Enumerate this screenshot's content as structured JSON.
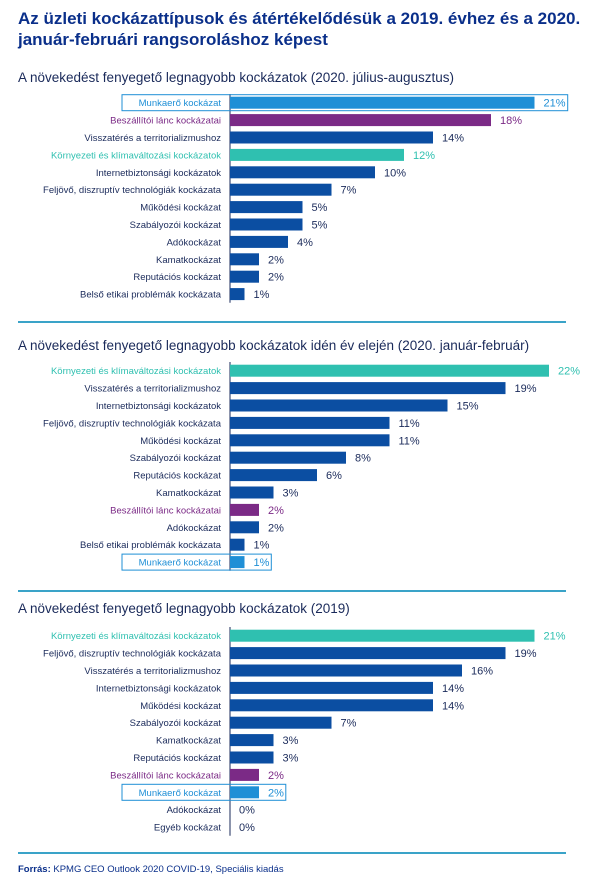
{
  "title": "Az üzleti kockázattípusok és átértékelődésük a 2019. évhez és a 2020. január-februári rangsoroláshoz képest",
  "source_label": "Forrás:",
  "source_text": "KPMG CEO Outlook 2020 COVID-19, Speciális kiadás",
  "colors": {
    "default": "#0b4ea2",
    "purple": "#7b2a86",
    "teal": "#2fc0b0",
    "lightblue": "#1f8fd6",
    "axis": "#1a2a5a",
    "title": "#0a2f8a",
    "rule": "#3aa3c8"
  },
  "chart_data": [
    {
      "type": "bar",
      "orientation": "horizontal",
      "title": "A növekedést fenyegető legnagyobb kockázatok (2020. július-augusztus)",
      "value_suffix": "%",
      "xlim": [
        0,
        21
      ],
      "categories": [
        "Munkaerő kockázat",
        "Beszállítói lánc kockázatai",
        "Visszatérés a territorializmushoz",
        "Környezeti és klímaváltozási kockázatok",
        "Internetbiztonsági kockázatok",
        "Feljövő, diszruptív technológiák kockázata",
        "Működési kockázat",
        "Szabályozói kockázat",
        "Adókockázat",
        "Kamatkockázat",
        "Reputációs kockázat",
        "Belső etikai problémák kockázata"
      ],
      "values": [
        21,
        18,
        14,
        12,
        10,
        7,
        5,
        5,
        4,
        2,
        2,
        1
      ],
      "highlights": [
        "lightblue",
        "purple",
        "default",
        "teal",
        "default",
        "default",
        "default",
        "default",
        "default",
        "default",
        "default",
        "default"
      ],
      "boxed": [
        true,
        false,
        false,
        false,
        false,
        false,
        false,
        false,
        false,
        false,
        false,
        false
      ]
    },
    {
      "type": "bar",
      "orientation": "horizontal",
      "title": "A növekedést fenyegető legnagyobb kockázatok idén év elején (2020. január-február)",
      "value_suffix": "%",
      "xlim": [
        0,
        22
      ],
      "categories": [
        "Környezeti és klímaváltozási kockázatok",
        "Visszatérés a territorializmushoz",
        "Internetbiztonsági kockázatok",
        "Feljövő, diszruptív technológiák kockázata",
        "Működési kockázat",
        "Szabályozói kockázat",
        "Reputációs kockázat",
        "Kamatkockázat",
        "Beszállítói lánc kockázatai",
        "Adókockázat",
        "Belső etikai problémák kockázata",
        "Munkaerő kockázat"
      ],
      "values": [
        22,
        19,
        15,
        11,
        11,
        8,
        6,
        3,
        2,
        2,
        1,
        1
      ],
      "highlights": [
        "teal",
        "default",
        "default",
        "default",
        "default",
        "default",
        "default",
        "default",
        "purple",
        "default",
        "default",
        "lightblue"
      ],
      "boxed": [
        false,
        false,
        false,
        false,
        false,
        false,
        false,
        false,
        false,
        false,
        false,
        true
      ]
    },
    {
      "type": "bar",
      "orientation": "horizontal",
      "title": "A növekedést fenyegető legnagyobb kockázatok (2019)",
      "value_suffix": "%",
      "xlim": [
        0,
        21
      ],
      "categories": [
        "Környezeti és klímaváltozási kockázatok",
        "Feljövő, diszruptív technológiák kockázata",
        "Visszatérés a territorializmushoz",
        "Internetbiztonsági kockázatok",
        "Működési kockázat",
        "Szabályozói kockázat",
        "Kamatkockázat",
        "Reputációs kockázat",
        "Beszállítói lánc kockázatai",
        "Munkaerő kockázat",
        "Adókockázat",
        "Egyéb kockázat"
      ],
      "values": [
        21,
        19,
        16,
        14,
        14,
        7,
        3,
        3,
        2,
        2,
        0,
        0
      ],
      "highlights": [
        "teal",
        "default",
        "default",
        "default",
        "default",
        "default",
        "default",
        "default",
        "purple",
        "lightblue",
        "default",
        "default"
      ],
      "boxed": [
        false,
        false,
        false,
        false,
        false,
        false,
        false,
        false,
        false,
        true,
        false,
        false
      ]
    }
  ]
}
